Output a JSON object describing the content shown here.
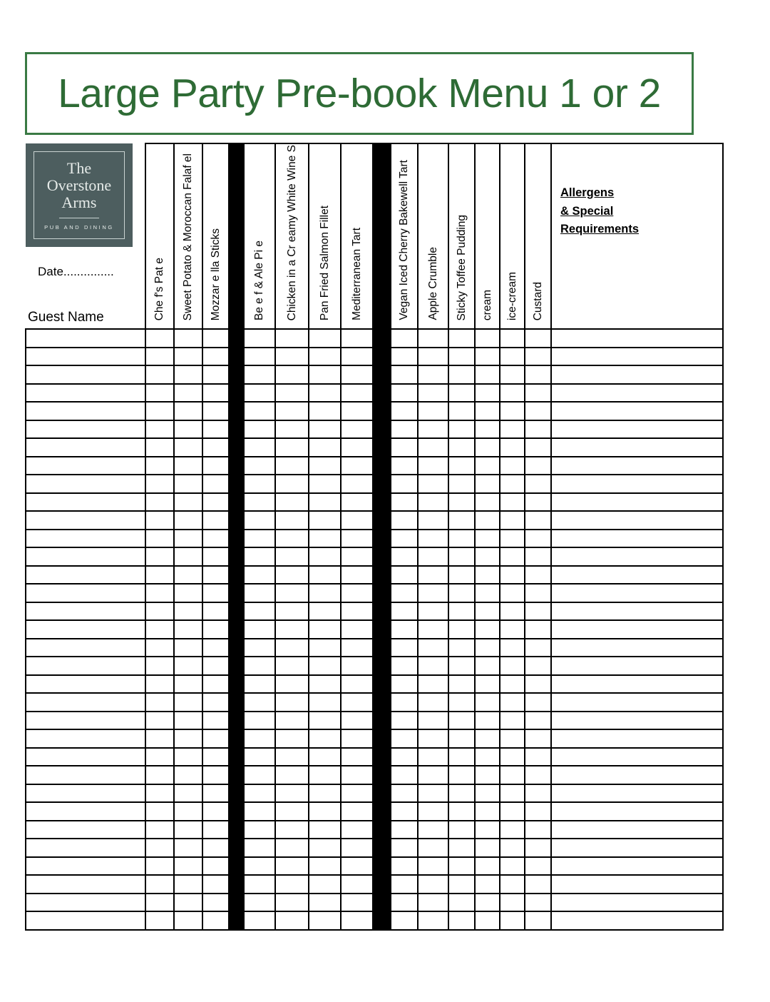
{
  "title": "Large Party Pre-book Menu 1 or 2",
  "logo": {
    "line1": "The",
    "line2": "Overstone",
    "line3": "Arms",
    "tagline": "PUB AND DINING"
  },
  "corner": {
    "date_label": "Date...............",
    "guest_name_label": "Guest Name"
  },
  "menu_columns": [
    "Che f's Pat e",
    "Sweet Potato & Moroccan Falaf el",
    "Mozzar e lla Sticks",
    "Be e f & Ale Pi e",
    "Chicken in a Cr eamy White Wine S",
    "Pan Fried Salmon Fillet",
    "Mediterranean Tart",
    "Vegan Iced Cherry Bakewell Tart",
    "Apple Crumble",
    "Sticky Toffee Pudding",
    "cream",
    "ice-cream",
    "Custard"
  ],
  "allergens_header": [
    "Allergens",
    "& Special",
    "Requirements"
  ],
  "body": {
    "row_count": 33
  },
  "colors": {
    "title_green": "#2e6b35",
    "border_green": "#3a7a44",
    "logo_background": "#4d5e5f",
    "grid_line": "#000000",
    "separator_column": "#000000"
  }
}
